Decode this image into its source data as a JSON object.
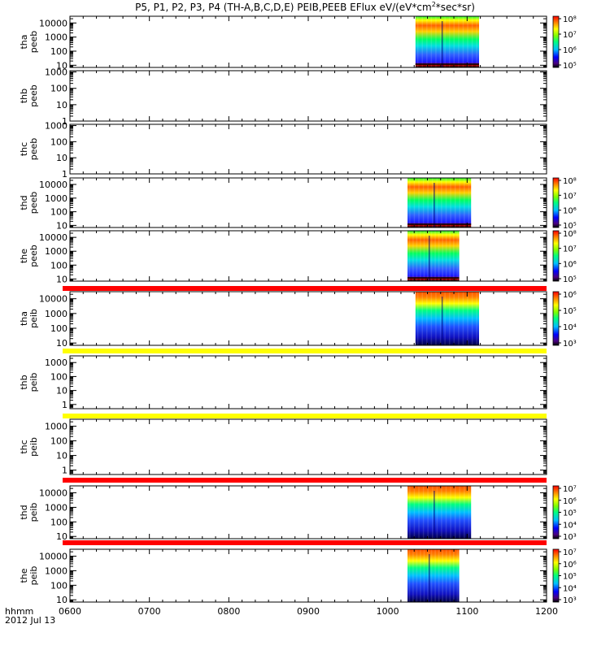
{
  "chart_data": {
    "type": "heatmap",
    "title": "P5, P1, P2, P3, P4 (TH-A,B,C,D,E) PEIB,PEEB EFlux eV/(eV*cm²*sec*sr)",
    "title_parts": {
      "prefix": "P5, P1, P2, P3, P4 (TH-A,B,C,D,E) PEIB,PEEB EFlux eV/(eV*cm",
      "superscript": "2",
      "suffix": "*sec*sr)"
    },
    "x_axis": {
      "label": "hhmm",
      "date": "2012 Jul 13",
      "range_hours": [
        6,
        12
      ],
      "ticks": [
        {
          "v": 6,
          "label": "0600"
        },
        {
          "v": 7,
          "label": "0700"
        },
        {
          "v": 8,
          "label": "0800"
        },
        {
          "v": 9,
          "label": "0900"
        },
        {
          "v": 10,
          "label": "1000"
        },
        {
          "v": 11,
          "label": "1100"
        },
        {
          "v": 12,
          "label": "1200"
        }
      ]
    },
    "panels": [
      {
        "name": "tha-peeb",
        "ylabel": [
          "tha",
          "peeb"
        ],
        "ylim": [
          7,
          30000
        ],
        "yticks": [
          10,
          100,
          1000,
          10000
        ],
        "ytick_labels": [
          "10",
          "100",
          "1000",
          "10000"
        ],
        "data_time": [
          10.35,
          11.15
        ],
        "energy_range": [
          7,
          30000
        ],
        "colorbar_ticks": [
          "10⁸",
          "10⁷",
          "10⁶",
          "10⁵"
        ],
        "colorbar_exp": [
          8,
          7,
          6,
          5
        ],
        "flag_bar": null
      },
      {
        "name": "thb-peeb",
        "ylabel": [
          "thb",
          "peeb"
        ],
        "ylim": [
          1,
          1200
        ],
        "yticks": [
          1,
          10,
          100,
          1000
        ],
        "ytick_labels": [
          "1",
          "10",
          "100",
          "1000"
        ],
        "data_time": null,
        "colorbar_ticks": [],
        "flag_bar": null
      },
      {
        "name": "thc-peeb",
        "ylabel": [
          "thc",
          "peeb"
        ],
        "ylim": [
          1,
          1200
        ],
        "yticks": [
          1,
          10,
          100,
          1000
        ],
        "ytick_labels": [
          "1",
          "10",
          "100",
          "1000"
        ],
        "data_time": null,
        "colorbar_ticks": [],
        "flag_bar": null
      },
      {
        "name": "thd-peeb",
        "ylabel": [
          "thd",
          "peeb"
        ],
        "ylim": [
          7,
          30000
        ],
        "yticks": [
          10,
          100,
          1000,
          10000
        ],
        "ytick_labels": [
          "10",
          "100",
          "1000",
          "10000"
        ],
        "data_time": [
          10.25,
          11.05
        ],
        "energy_range": [
          7,
          30000
        ],
        "colorbar_ticks": [
          "10⁸",
          "10⁷",
          "10⁶",
          "10⁵"
        ],
        "colorbar_exp": [
          8,
          7,
          6,
          5
        ],
        "flag_bar": null
      },
      {
        "name": "the-peeb",
        "ylabel": [
          "the",
          "peeb"
        ],
        "ylim": [
          7,
          30000
        ],
        "yticks": [
          10,
          100,
          1000,
          10000
        ],
        "ytick_labels": [
          "10",
          "100",
          "1000",
          "10000"
        ],
        "data_time": [
          10.25,
          10.9
        ],
        "energy_range": [
          7,
          30000
        ],
        "colorbar_ticks": [
          "10⁸",
          "10⁷",
          "10⁶",
          "10⁵"
        ],
        "colorbar_exp": [
          8,
          7,
          6,
          5
        ],
        "flag_bar": "red"
      },
      {
        "name": "tha-peib",
        "ylabel": [
          "tha",
          "peib"
        ],
        "ylim": [
          7,
          30000
        ],
        "yticks": [
          10,
          100,
          1000,
          10000
        ],
        "ytick_labels": [
          "10",
          "100",
          "1000",
          "10000"
        ],
        "data_time": [
          10.35,
          11.15
        ],
        "energy_range": [
          7,
          30000
        ],
        "colorbar_ticks": [
          "10⁶",
          "10⁵",
          "10⁴",
          "10³"
        ],
        "colorbar_exp": [
          6,
          5,
          4,
          3
        ],
        "flag_bar": "yellow"
      },
      {
        "name": "thb-peib",
        "ylabel": [
          "thb",
          "peib"
        ],
        "ylim": [
          0.5,
          3000
        ],
        "yticks": [
          1,
          10,
          100,
          1000
        ],
        "ytick_labels": [
          "1",
          "10",
          "100",
          "1000"
        ],
        "data_time": null,
        "colorbar_ticks": [],
        "flag_bar": "yellow"
      },
      {
        "name": "thc-peib",
        "ylabel": [
          "thc",
          "peib"
        ],
        "ylim": [
          0.5,
          3000
        ],
        "yticks": [
          1,
          10,
          100,
          1000
        ],
        "ytick_labels": [
          "1",
          "10",
          "100",
          "1000"
        ],
        "data_time": null,
        "colorbar_ticks": [],
        "flag_bar": "red"
      },
      {
        "name": "thd-peib",
        "ylabel": [
          "thd",
          "peib"
        ],
        "ylim": [
          7,
          30000
        ],
        "yticks": [
          10,
          100,
          1000,
          10000
        ],
        "ytick_labels": [
          "10",
          "100",
          "1000",
          "10000"
        ],
        "data_time": [
          10.25,
          11.05
        ],
        "energy_range": [
          7,
          30000
        ],
        "colorbar_ticks": [
          "10⁷",
          "10⁶",
          "10⁵",
          "10⁴",
          "10³"
        ],
        "colorbar_exp": [
          7,
          6,
          5,
          4,
          3
        ],
        "flag_bar": "red"
      },
      {
        "name": "the-peib",
        "ylabel": [
          "the",
          "peib"
        ],
        "ylim": [
          7,
          30000
        ],
        "yticks": [
          10,
          100,
          1000,
          10000
        ],
        "ytick_labels": [
          "10",
          "100",
          "1000",
          "10000"
        ],
        "data_time": [
          10.25,
          10.9
        ],
        "energy_range": [
          7,
          30000
        ],
        "colorbar_ticks": [
          "10⁷",
          "10⁶",
          "10⁵",
          "10⁴",
          "10³"
        ],
        "colorbar_exp": [
          7,
          6,
          5,
          4,
          3
        ],
        "flag_bar": null
      }
    ],
    "colors": {
      "flag_red": "#ff0000",
      "flag_yellow": "#ffff00",
      "frame": "#000000",
      "background": "#ffffff"
    }
  }
}
